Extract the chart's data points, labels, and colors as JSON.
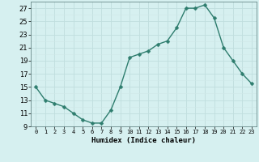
{
  "x": [
    0,
    1,
    2,
    3,
    4,
    5,
    6,
    7,
    8,
    9,
    10,
    11,
    12,
    13,
    14,
    15,
    16,
    17,
    18,
    19,
    20,
    21,
    22,
    23
  ],
  "y": [
    15,
    13,
    12.5,
    12,
    11,
    10,
    9.5,
    9.5,
    11.5,
    15,
    19.5,
    20,
    20.5,
    21.5,
    22,
    24,
    27,
    27,
    27.5,
    25.5,
    21,
    19,
    17,
    15.5
  ],
  "xlabel": "Humidex (Indice chaleur)",
  "ylim": [
    9,
    28
  ],
  "xlim": [
    -0.5,
    23.5
  ],
  "yticks": [
    9,
    11,
    13,
    15,
    17,
    19,
    21,
    23,
    25,
    27
  ],
  "xtick_labels": [
    "0",
    "1",
    "2",
    "3",
    "4",
    "5",
    "6",
    "7",
    "8",
    "9",
    "10",
    "11",
    "12",
    "13",
    "14",
    "15",
    "16",
    "17",
    "18",
    "19",
    "20",
    "21",
    "22",
    "23"
  ],
  "line_color": "#2e7d6e",
  "bg_color": "#d6f0f0",
  "grid_major_color": "#c0dede",
  "grid_minor_color": "#d0e8e8",
  "marker_size": 2.5,
  "line_width": 1.0
}
